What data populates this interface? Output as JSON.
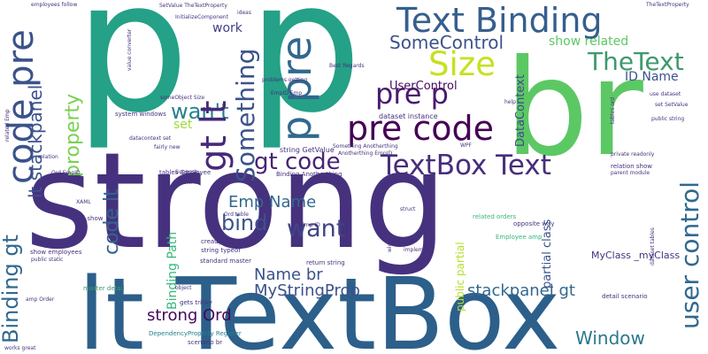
{
  "words": [
    {
      "t": "strong",
      "c": "#46317e"
    },
    {
      "t": "p p",
      "c": "#24a186"
    },
    {
      "t": "lt TextBox",
      "c": "#2c5f8a"
    },
    {
      "t": "br",
      "c": "#5cc864"
    },
    {
      "t": "Text Binding",
      "c": "#355f8d"
    },
    {
      "t": "code pre",
      "c": "#3b528b"
    },
    {
      "t": "pre code",
      "c": "#440154"
    },
    {
      "t": "TextBox Text",
      "c": "#472d7b"
    },
    {
      "t": "SomeControl",
      "c": "#3b528b"
    },
    {
      "t": "Size",
      "c": "#c8e020"
    },
    {
      "t": "pre p",
      "c": "#481a6c"
    },
    {
      "t": "TheText",
      "c": "#3e9a6c"
    },
    {
      "t": "wan't",
      "c": "#26818e"
    },
    {
      "t": "bind",
      "c": "#3b528b"
    },
    {
      "t": "want",
      "c": "#414487"
    },
    {
      "t": "Emp Name",
      "c": "#31688e"
    },
    {
      "t": "gt code",
      "c": "#482374"
    },
    {
      "t": "Name br",
      "c": "#3b528b"
    },
    {
      "t": "strong Ord",
      "c": "#46085c"
    },
    {
      "t": "MyStringProp",
      "c": "#3b528b"
    },
    {
      "t": "stackpanel gt",
      "c": "#31688e"
    },
    {
      "t": "Window",
      "c": "#2a788e"
    },
    {
      "t": "UserControl",
      "c": "#46085c"
    },
    {
      "t": "show related",
      "c": "#5cc864"
    },
    {
      "t": "work",
      "c": "#424086"
    },
    {
      "t": "set",
      "c": "#a0da39"
    },
    {
      "t": "ID Name",
      "c": "#3b528b"
    },
    {
      "t": "p pre",
      "c": "#31688e"
    },
    {
      "t": "Something",
      "c": "#3b528b"
    },
    {
      "t": "gt lt",
      "c": "#482878"
    },
    {
      "t": "property",
      "c": "#7ad151"
    },
    {
      "t": "lt stackpanel",
      "c": "#3b528b"
    },
    {
      "t": "code lt",
      "c": "#32648e"
    },
    {
      "t": "Binding gt",
      "c": "#31688e"
    },
    {
      "t": "user control",
      "c": "#31688e"
    },
    {
      "t": "Binding Path",
      "c": "#35b779"
    },
    {
      "t": "DataContext",
      "c": "#3e4989"
    },
    {
      "t": "partial class",
      "c": "#3b528b"
    },
    {
      "t": "public partial",
      "c": "#b5de2b"
    },
    {
      "t": "MyClass _myClass",
      "c": "#46327e"
    },
    {
      "t": "dataset instance",
      "c": "#46327e"
    },
    {
      "t": "string GetValue",
      "c": "#46327e"
    },
    {
      "t": "typeof string",
      "c": "#46327e"
    },
    {
      "t": "return string",
      "c": "#46327e"
    },
    {
      "t": "standard master",
      "c": "#46327e"
    },
    {
      "t": "create value",
      "c": "#46327e"
    },
    {
      "t": "string typeof",
      "c": "#46327e"
    },
    {
      "t": "gets tricky",
      "c": "#46327e"
    },
    {
      "t": "DependencyProperty Register",
      "c": "#26818e"
    },
    {
      "t": "scenario br",
      "c": "#46327e"
    },
    {
      "t": "master detail",
      "c": "#3e9a6c"
    },
    {
      "t": "show employees",
      "c": "#46327e"
    },
    {
      "t": "public static",
      "c": "#46327e"
    },
    {
      "t": "way show",
      "c": "#46327e"
    },
    {
      "t": "tables Employee",
      "c": "#46327e"
    },
    {
      "t": "Suppose",
      "c": "#46327e"
    },
    {
      "t": "fairly new",
      "c": "#46327e"
    },
    {
      "t": "Binding Anotherthing",
      "c": "#46327e"
    },
    {
      "t": "Something Anotherthing",
      "c": "#46327e"
    },
    {
      "t": "Anotherthing EmpID",
      "c": "#46327e"
    },
    {
      "t": "related orders",
      "c": "#35b779"
    },
    {
      "t": "Employee amp",
      "c": "#35b779"
    },
    {
      "t": "opposite way",
      "c": "#46327e"
    },
    {
      "t": "detail scenario",
      "c": "#46327e"
    },
    {
      "t": "relation show",
      "c": "#46327e"
    },
    {
      "t": "use dataset",
      "c": "#46327e"
    },
    {
      "t": "set SetValue",
      "c": "#46327e"
    },
    {
      "t": "private readonly",
      "c": "#46327e"
    },
    {
      "t": "parent module",
      "c": "#46327e"
    },
    {
      "t": "public string",
      "c": "#46327e"
    },
    {
      "t": "system windows",
      "c": "#46327e"
    },
    {
      "t": "datacontext set",
      "c": "#46327e"
    },
    {
      "t": "someObject Size",
      "c": "#46327e"
    },
    {
      "t": "EmpID Emp",
      "c": "#46327e"
    },
    {
      "t": "problems getting",
      "c": "#46327e"
    },
    {
      "t": "InitializeComponent",
      "c": "#46327e"
    },
    {
      "t": "SetValue TheTextProperty",
      "c": "#46327e"
    },
    {
      "t": "employees follow",
      "c": "#46327e"
    },
    {
      "t": "Ord EmpID",
      "c": "#46327e"
    },
    {
      "t": "amp Order",
      "c": "#46327e"
    },
    {
      "t": "works great",
      "c": "#46327e"
    },
    {
      "t": "object",
      "c": "#46327e"
    },
    {
      "t": "XAML",
      "c": "#46327e"
    },
    {
      "t": "relation",
      "c": "#46327e"
    },
    {
      "t": "ideas",
      "c": "#46327e"
    },
    {
      "t": "Best Regards",
      "c": "#46327e"
    },
    {
      "t": "value converter",
      "c": "#46327e"
    },
    {
      "t": "width",
      "c": "#46327e"
    },
    {
      "t": "implement",
      "c": "#46327e"
    },
    {
      "t": "struct",
      "c": "#46327e"
    },
    {
      "t": "help",
      "c": "#46327e"
    },
    {
      "t": "WPF",
      "c": "#46327e"
    },
    {
      "t": "problem",
      "c": "#46327e"
    },
    {
      "t": "TheTextProperty",
      "c": "#46327e"
    },
    {
      "t": "Emp ID",
      "c": "#46327e"
    },
    {
      "t": "tables ord",
      "c": "#46327e"
    },
    {
      "t": "dataset tables",
      "c": "#46327e"
    },
    {
      "t": "related Emp",
      "c": "#46327e"
    },
    {
      "t": "Ord table",
      "c": "#46327e"
    }
  ]
}
